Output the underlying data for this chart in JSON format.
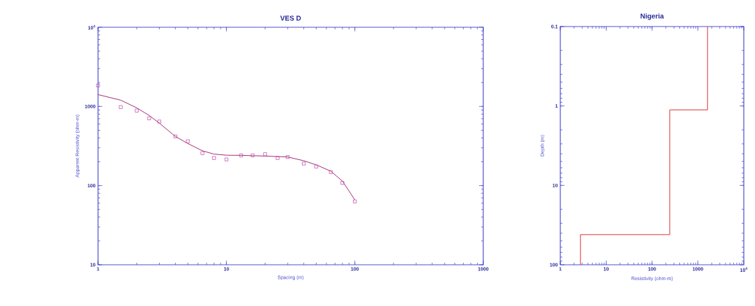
{
  "chart_data": [
    {
      "type": "scatter",
      "title": "VES D",
      "xlabel": "Spacing (m)",
      "ylabel": "Apparent Resistivity (ohm-m)",
      "log": "xy",
      "xlim": [
        1,
        1000
      ],
      "ylim": [
        10,
        10000
      ],
      "xticks": [
        1,
        10,
        100,
        1000
      ],
      "yticks": [
        10,
        100,
        1000,
        {
          "value": 10000,
          "label": "10$^{4}$"
        }
      ],
      "x": [
        1,
        1.5,
        2,
        2.5,
        3,
        4,
        5,
        6.5,
        8,
        10,
        13,
        16,
        20,
        25,
        30,
        40,
        50,
        65,
        80,
        100
      ],
      "series": [
        {
          "type": "scatter",
          "color": "#c040a8",
          "marker": "square",
          "values": [
            1840,
            980,
            885,
            708,
            644,
            418,
            363,
            257,
            223,
            214,
            241,
            241,
            249,
            223,
            230,
            190,
            174,
            148,
            108,
            63
          ]
        },
        {
          "type": "line",
          "color": "#a03070",
          "marker": "none",
          "line_style": "solid",
          "x": [
            1,
            1.5,
            2,
            2.5,
            3,
            4,
            5,
            6.5,
            8,
            10,
            13,
            20,
            30,
            40,
            50,
            65,
            80,
            100
          ],
          "values": [
            1410,
            1200,
            960,
            770,
            615,
            418,
            340,
            275,
            250,
            242,
            241,
            236,
            230,
            206,
            183,
            152,
            114,
            66
          ]
        }
      ]
    },
    {
      "type": "line",
      "title": "Nigeria",
      "xlabel": "Resistivity (ohm-m)",
      "ylabel": "Depth (m)",
      "log": "xy",
      "xlim": [
        1,
        10000
      ],
      "ylim": [
        100,
        0.1
      ],
      "xticks": [
        1,
        10,
        100,
        1000,
        {
          "value": 10000,
          "label": "10$^{4}$"
        }
      ],
      "yticks": [
        0.1,
        1,
        10,
        100
      ],
      "series": [
        {
          "color": "#e03030",
          "marker": "none",
          "line_style": "solid",
          "x": [
            1620,
            1620,
            243,
            243,
            2.75,
            2.75
          ],
          "values": [
            0.1,
            1.12,
            1.12,
            41.7,
            41.7,
            100
          ]
        }
      ]
    }
  ]
}
